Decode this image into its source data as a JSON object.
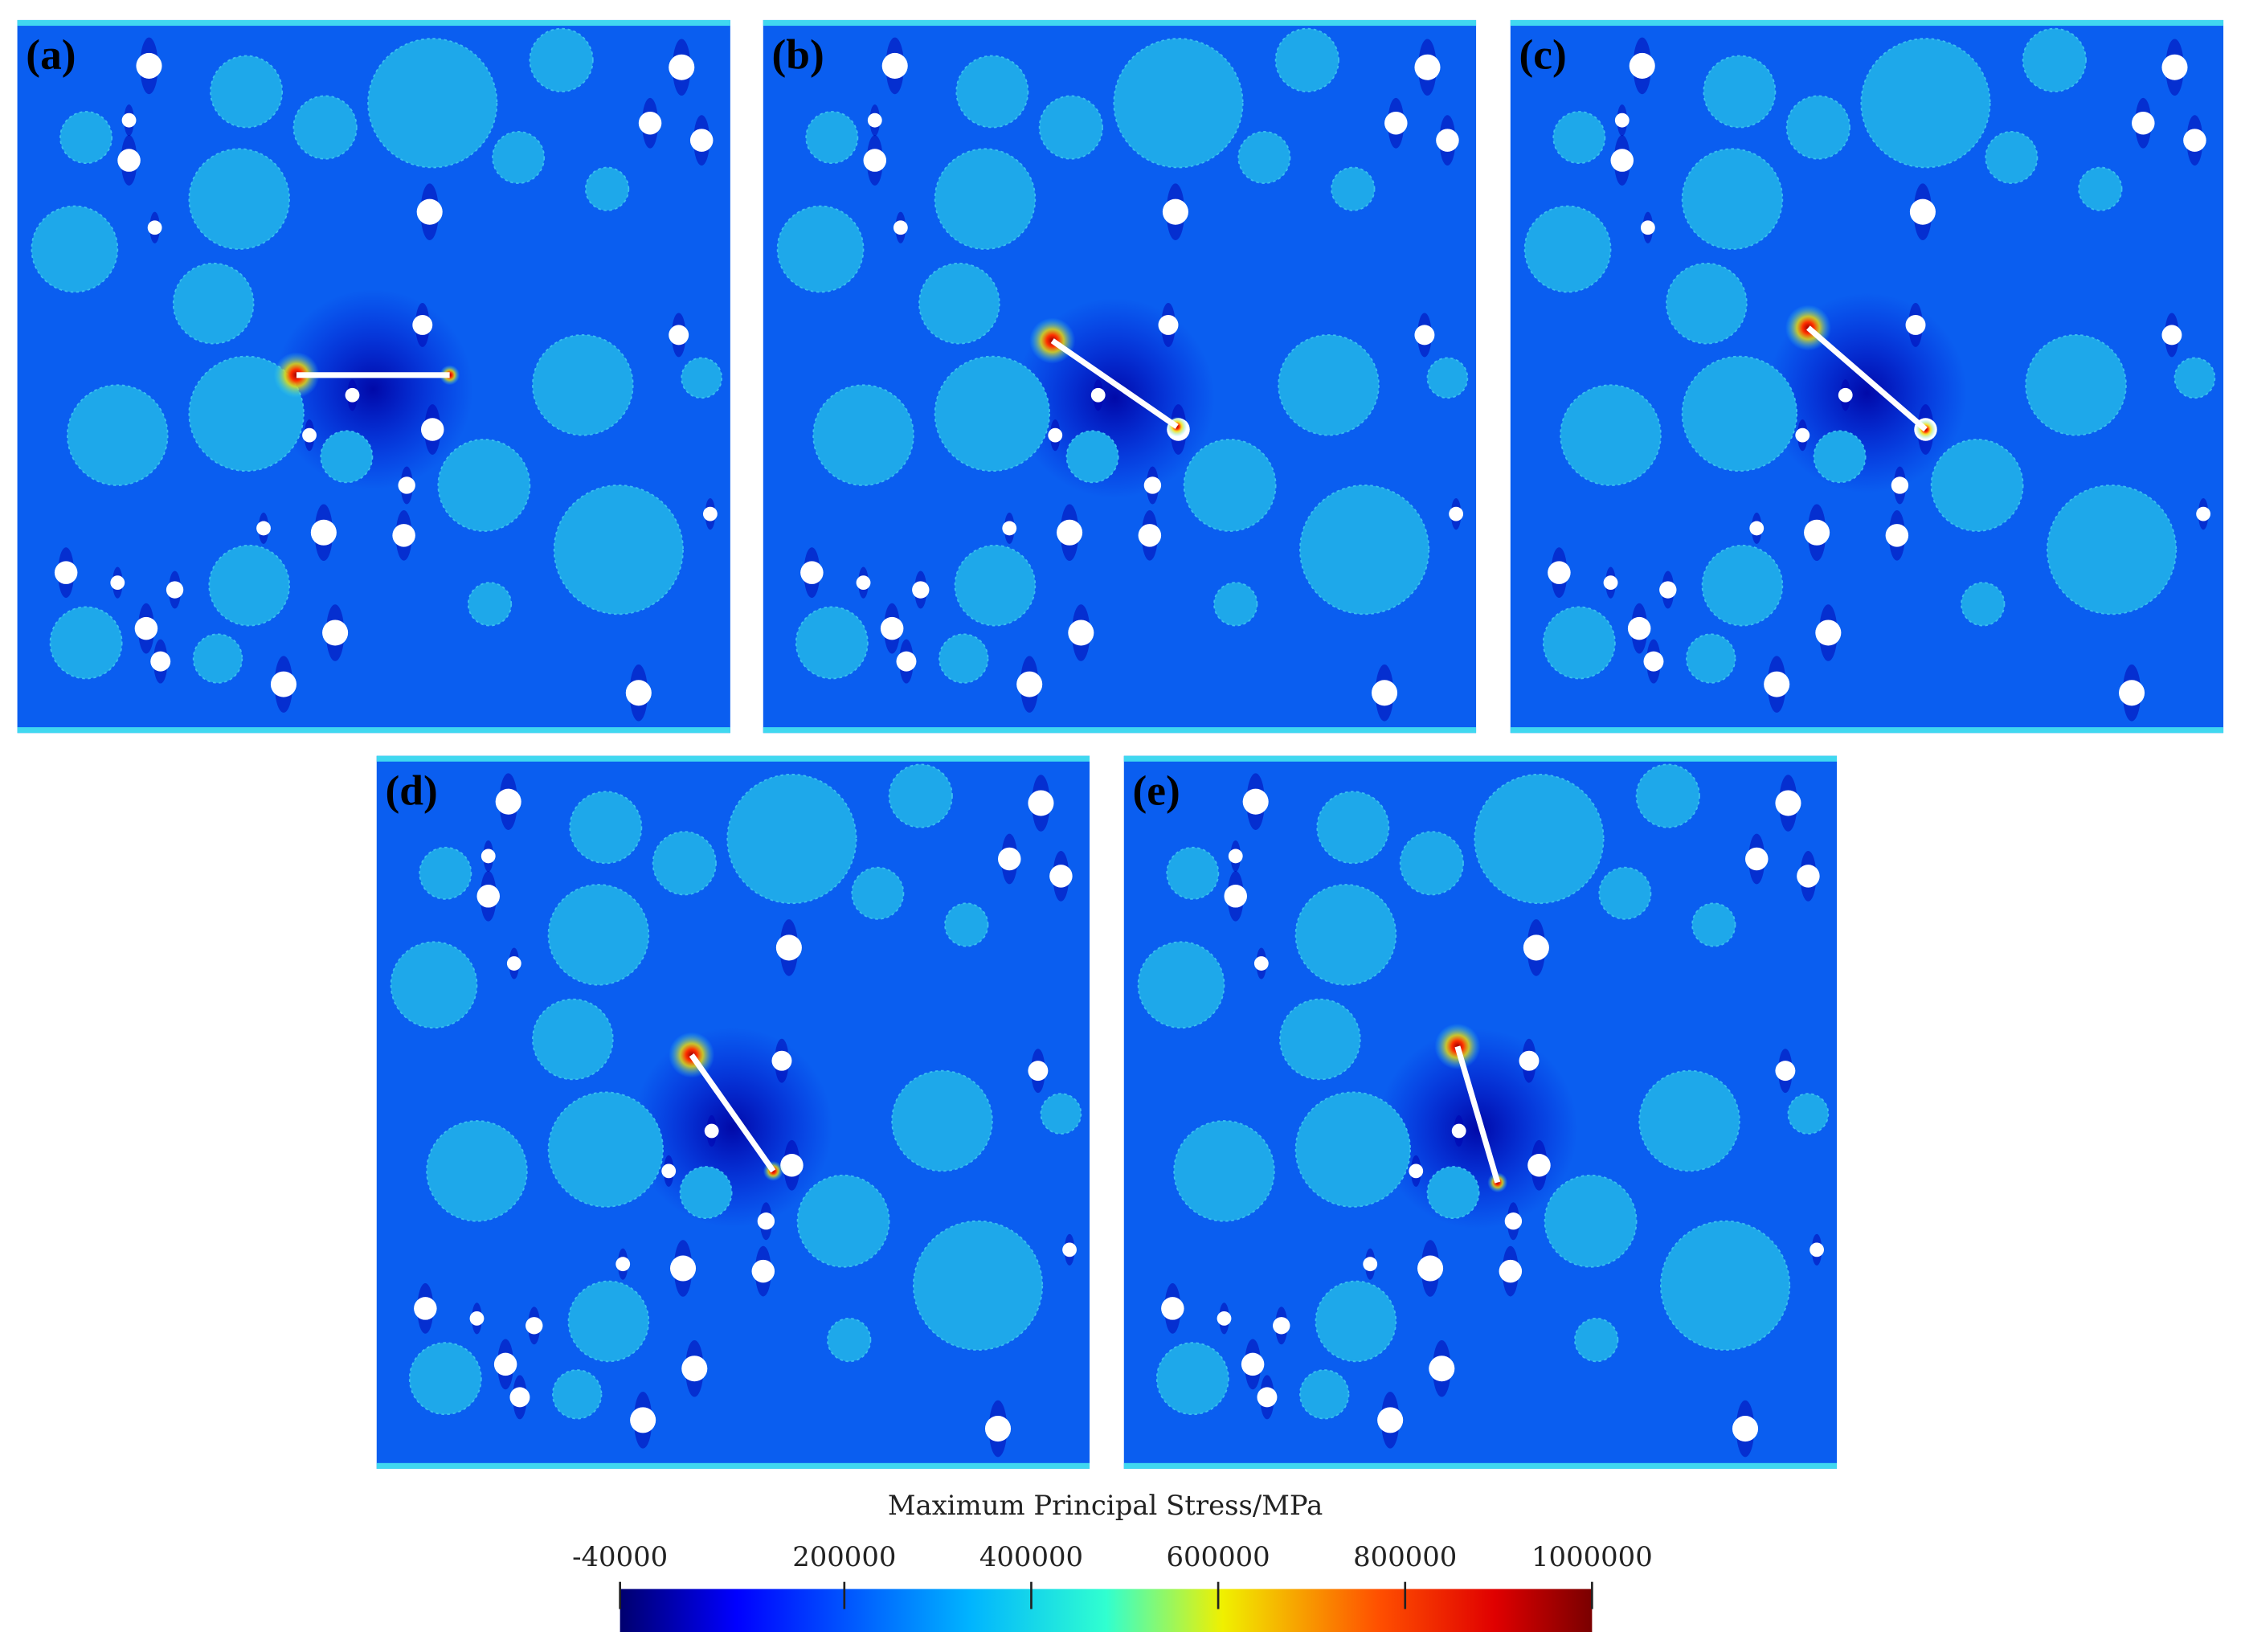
{
  "panels": [
    {
      "label": "(a)"
    },
    {
      "label": "(b)"
    },
    {
      "label": "(c)"
    },
    {
      "label": "(d)"
    },
    {
      "label": "(e)"
    }
  ],
  "colorbar": {
    "title": "Maximum Principal Stress/MPa",
    "lim": [
      -40000,
      1000000
    ],
    "ticks": [
      -40000,
      200000,
      400000,
      600000,
      800000,
      1000000
    ]
  }
}
